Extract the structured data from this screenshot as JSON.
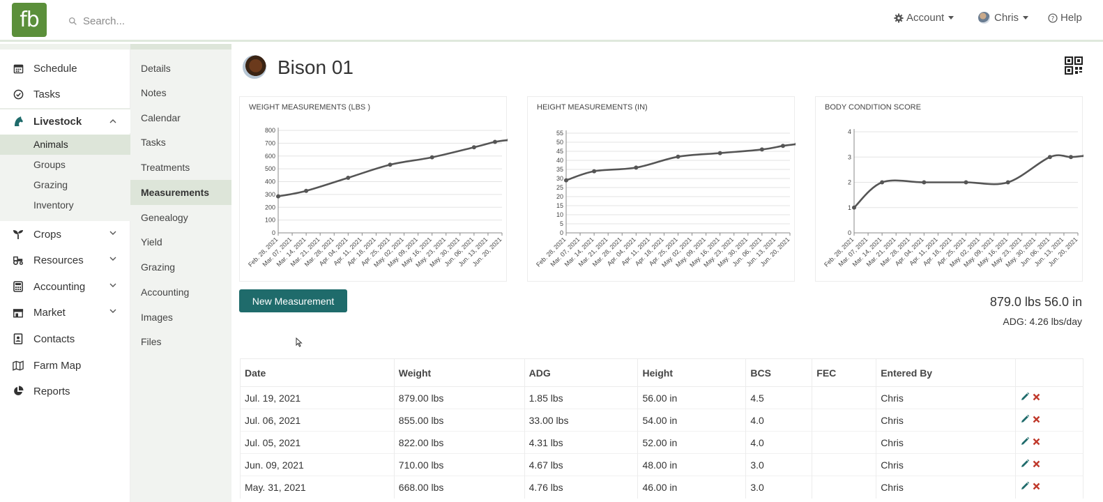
{
  "topbar": {
    "logo": "fb",
    "search_placeholder": "Search...",
    "account_label": "Account",
    "user_label": "Chris",
    "help_label": "Help"
  },
  "sidebar": {
    "items": [
      {
        "label": "Schedule",
        "icon": "calendar-icon"
      },
      {
        "label": "Tasks",
        "icon": "check-circle-icon"
      },
      {
        "label": "Livestock",
        "icon": "horse-head-icon"
      },
      {
        "label": "Crops",
        "icon": "seedling-icon"
      },
      {
        "label": "Resources",
        "icon": "tractor-icon"
      },
      {
        "label": "Accounting",
        "icon": "calculator-icon"
      },
      {
        "label": "Market",
        "icon": "store-icon"
      },
      {
        "label": "Contacts",
        "icon": "address-book-icon"
      },
      {
        "label": "Farm Map",
        "icon": "map-icon"
      },
      {
        "label": "Reports",
        "icon": "pie-chart-icon"
      }
    ],
    "livestock_sub": [
      "Animals",
      "Groups",
      "Grazing",
      "Inventory"
    ]
  },
  "subnav": [
    "Details",
    "Notes",
    "Calendar",
    "Tasks",
    "Treatments",
    "Measurements",
    "Genealogy",
    "Yield",
    "Grazing",
    "Accounting",
    "Images",
    "Files"
  ],
  "animal": {
    "name": "Bison 01"
  },
  "charts": {
    "weight_title": "WEIGHT MEASUREMENTS (LBS )",
    "height_title": "HEIGHT MEASUREMENTS (IN)",
    "bcs_title": "BODY CONDITION SCORE"
  },
  "chart_data": [
    {
      "type": "line",
      "title": "WEIGHT MEASUREMENTS (LBS )",
      "x": [
        "Feb. 28, 2021",
        "Mar. 07, 2021",
        "Mar. 14, 2021",
        "Mar. 21, 2021",
        "Mar. 28, 2021",
        "Apr. 04, 2021",
        "Apr. 11, 2021",
        "Apr. 18, 2021",
        "Apr. 25, 2021",
        "May. 02, 2021",
        "May. 09, 2021",
        "May. 16, 2021",
        "May. 23, 2021",
        "May. 30, 2021",
        "Jun. 06, 2021",
        "Jun. 13, 2021",
        "Jun. 20, 2021"
      ],
      "y_ticks": [
        0,
        100,
        200,
        300,
        400,
        500,
        600,
        700,
        800
      ],
      "ylim": [
        0,
        800
      ],
      "points": [
        [
          0,
          285
        ],
        [
          2,
          328
        ],
        [
          5,
          430
        ],
        [
          8,
          532
        ],
        [
          11,
          590
        ],
        [
          14,
          668
        ],
        [
          15.5,
          710
        ],
        [
          16.5,
          725
        ]
      ]
    },
    {
      "type": "line",
      "title": "HEIGHT MEASUREMENTS (IN)",
      "x": [
        "Feb. 28, 2021",
        "Mar. 07, 2021",
        "Mar. 14, 2021",
        "Mar. 21, 2021",
        "Mar. 28, 2021",
        "Apr. 04, 2021",
        "Apr. 11, 2021",
        "Apr. 18, 2021",
        "Apr. 25, 2021",
        "May. 02, 2021",
        "May. 09, 2021",
        "May. 16, 2021",
        "May. 23, 2021",
        "May. 30, 2021",
        "Jun. 06, 2021",
        "Jun. 13, 2021",
        "Jun. 20, 2021"
      ],
      "y_ticks": [
        0,
        5,
        10,
        15,
        20,
        25,
        30,
        35,
        40,
        45,
        50,
        55
      ],
      "ylim": [
        0,
        55
      ],
      "points": [
        [
          0,
          29
        ],
        [
          2,
          34
        ],
        [
          5,
          36
        ],
        [
          8,
          42
        ],
        [
          11,
          44
        ],
        [
          14,
          46
        ],
        [
          15.5,
          48
        ],
        [
          16.5,
          49
        ]
      ]
    },
    {
      "type": "line",
      "title": "BODY CONDITION SCORE",
      "x": [
        "Feb. 28, 2021",
        "Mar. 07, 2021",
        "Mar. 14, 2021",
        "Mar. 21, 2021",
        "Mar. 28, 2021",
        "Apr. 04, 2021",
        "Apr. 11, 2021",
        "Apr. 18, 2021",
        "Apr. 25, 2021",
        "May. 02, 2021",
        "May. 09, 2021",
        "May. 16, 2021",
        "May. 23, 2021",
        "May. 30, 2021",
        "Jun. 06, 2021",
        "Jun. 13, 2021",
        "Jun. 20, 2021"
      ],
      "y_ticks": [
        0,
        1,
        2,
        3,
        4
      ],
      "ylim": [
        0,
        4
      ],
      "points": [
        [
          0,
          1
        ],
        [
          2,
          2
        ],
        [
          5,
          2
        ],
        [
          8,
          2
        ],
        [
          11,
          2
        ],
        [
          14,
          3
        ],
        [
          15.5,
          3
        ],
        [
          16.5,
          3.05
        ]
      ]
    }
  ],
  "actions": {
    "new_measurement": "New Measurement"
  },
  "summary": {
    "latest": "879.0 lbs 56.0 in",
    "adg": "ADG: 4.26 lbs/day"
  },
  "table": {
    "headers": [
      "Date",
      "Weight",
      "ADG",
      "Height",
      "BCS",
      "FEC",
      "Entered By",
      ""
    ],
    "rows": [
      [
        "Jul. 19, 2021",
        "879.00 lbs",
        "1.85 lbs",
        "56.00 in",
        "4.5",
        "",
        "Chris"
      ],
      [
        "Jul. 06, 2021",
        "855.00 lbs",
        "33.00 lbs",
        "54.00 in",
        "4.0",
        "",
        "Chris"
      ],
      [
        "Jul. 05, 2021",
        "822.00 lbs",
        "4.31 lbs",
        "52.00 in",
        "4.0",
        "",
        "Chris"
      ],
      [
        "Jun. 09, 2021",
        "710.00 lbs",
        "4.67 lbs",
        "48.00 in",
        "3.0",
        "",
        "Chris"
      ],
      [
        "May. 31, 2021",
        "668.00 lbs",
        "4.76 lbs",
        "46.00 in",
        "3.0",
        "",
        "Chris"
      ]
    ]
  },
  "colors": {
    "brand": "#5b8f3a",
    "accent": "#1f6b6b",
    "active_bg": "#dde5d9",
    "sub_bg": "#f1f3f0",
    "delete": "#c0392b"
  }
}
